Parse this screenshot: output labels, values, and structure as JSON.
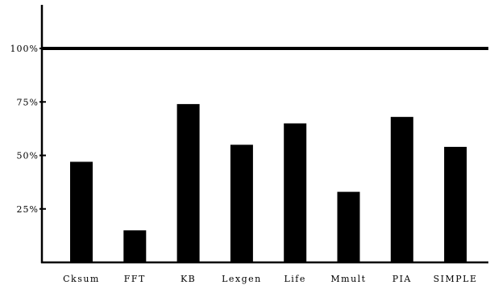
{
  "chart_data": {
    "type": "bar",
    "categories": [
      "Cksum",
      "FFT",
      "KB",
      "Lexgen",
      "Life",
      "Mmult",
      "PIA",
      "SIMPLE"
    ],
    "values": [
      47,
      15,
      74,
      55,
      65,
      33,
      68,
      54
    ],
    "yticks": [
      {
        "value": 25,
        "label": "25%"
      },
      {
        "value": 50,
        "label": "50%"
      },
      {
        "value": 75,
        "label": "75%"
      },
      {
        "value": 100,
        "label": "100%"
      }
    ],
    "reference_line": 100,
    "ylim": [
      0,
      120
    ],
    "grid": false,
    "bar_color": "#000000",
    "title": "",
    "xlabel": "",
    "ylabel": ""
  }
}
